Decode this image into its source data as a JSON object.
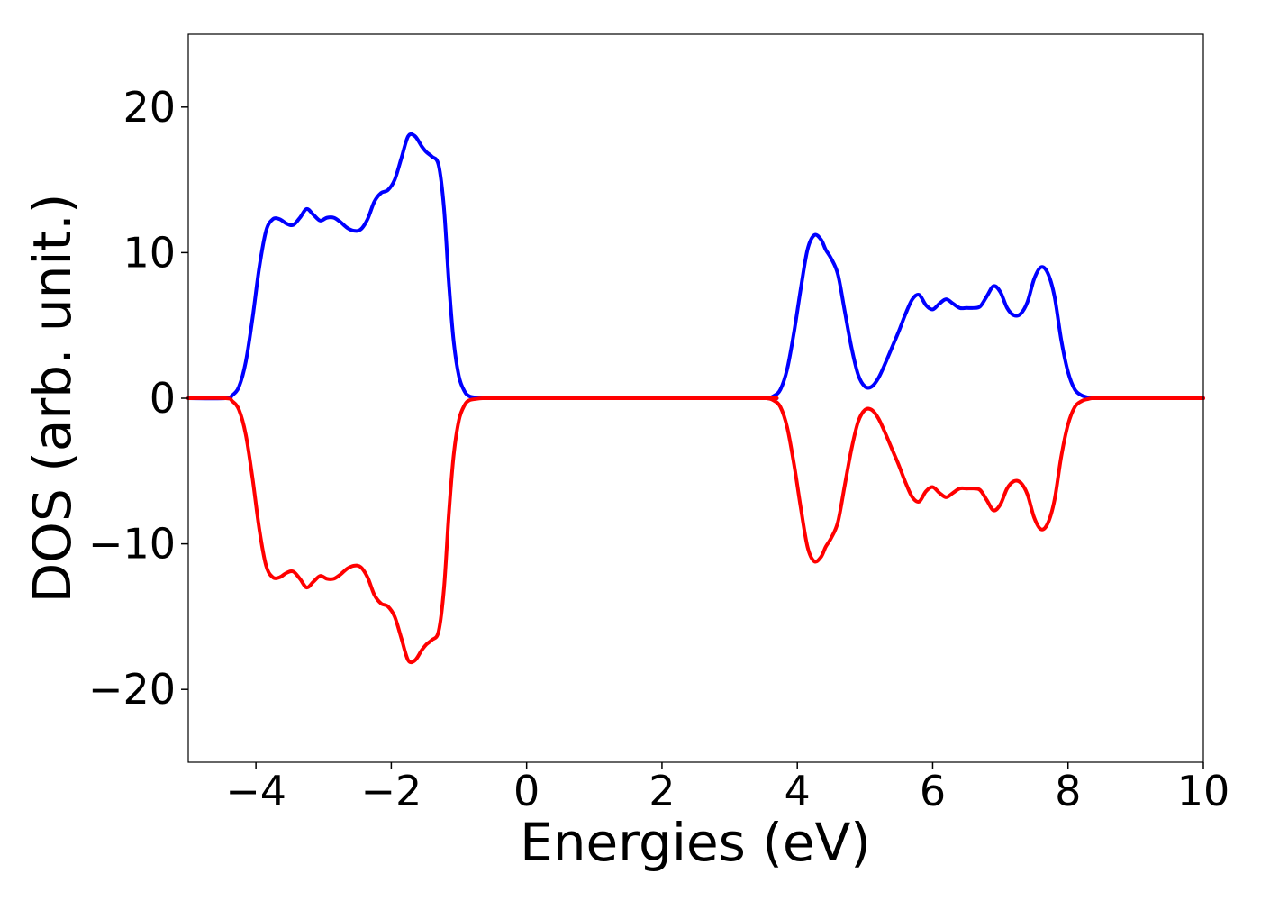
{
  "chart_data": {
    "type": "line",
    "title": "",
    "xlabel": "Energies (eV)",
    "ylabel": "DOS (arb. unit.)",
    "xlim": [
      -5,
      10
    ],
    "ylim": [
      -25,
      25
    ],
    "xticks": [
      -4,
      -2,
      0,
      2,
      4,
      6,
      8,
      10
    ],
    "xtick_labels": [
      "−4",
      "−2",
      "0",
      "2",
      "4",
      "6",
      "8",
      "10"
    ],
    "yticks": [
      -20,
      -10,
      0,
      10,
      20
    ],
    "ytick_labels": [
      "−20",
      "−10",
      "0",
      "10",
      "20"
    ],
    "grid": false,
    "legend": "none",
    "series": [
      {
        "color": "#0000ff",
        "x": [
          -5.0,
          -4.45,
          -4.35,
          -4.25,
          -4.15,
          -4.05,
          -3.95,
          -3.85,
          -3.75,
          -3.65,
          -3.55,
          -3.45,
          -3.35,
          -3.25,
          -3.15,
          -3.05,
          -2.95,
          -2.85,
          -2.75,
          -2.65,
          -2.55,
          -2.45,
          -2.35,
          -2.25,
          -2.15,
          -2.05,
          -1.95,
          -1.85,
          -1.75,
          -1.65,
          -1.55,
          -1.48,
          -1.4,
          -1.3,
          -1.22,
          -1.15,
          -1.08,
          -1.0,
          -0.92,
          -0.85,
          -0.75,
          -0.65,
          -0.55,
          -0.45,
          0.0,
          3.4,
          3.55,
          3.65,
          3.75,
          3.85,
          3.95,
          4.05,
          4.15,
          4.25,
          4.35,
          4.42,
          4.5,
          4.6,
          4.7,
          4.8,
          4.9,
          5.0,
          5.1,
          5.2,
          5.3,
          5.4,
          5.5,
          5.6,
          5.7,
          5.8,
          5.9,
          6.0,
          6.1,
          6.2,
          6.3,
          6.4,
          6.5,
          6.6,
          6.7,
          6.8,
          6.9,
          7.0,
          7.1,
          7.2,
          7.3,
          7.4,
          7.5,
          7.6,
          7.7,
          7.8,
          7.9,
          8.0,
          8.1,
          8.2,
          8.3,
          8.35,
          8.42,
          8.5,
          8.6,
          8.7,
          8.8,
          8.9,
          9.0,
          9.2,
          10.0
        ],
        "y": [
          0,
          0,
          0.2,
          0.8,
          2.5,
          5.5,
          9.0,
          11.5,
          12.3,
          12.3,
          12.0,
          11.9,
          12.4,
          13.0,
          12.6,
          12.2,
          12.4,
          12.4,
          12.1,
          11.7,
          11.5,
          11.6,
          12.3,
          13.5,
          14.1,
          14.3,
          15.0,
          16.5,
          18.0,
          18.0,
          17.3,
          16.9,
          16.6,
          16.0,
          13.0,
          8.0,
          4.0,
          1.5,
          0.5,
          0.15,
          0.05,
          0,
          0,
          0,
          0,
          0,
          0,
          0.15,
          0.6,
          2.0,
          4.5,
          7.5,
          10.2,
          11.2,
          10.9,
          10.2,
          9.6,
          8.5,
          6.0,
          3.5,
          1.6,
          0.8,
          0.8,
          1.4,
          2.4,
          3.5,
          4.6,
          5.8,
          6.8,
          7.1,
          6.4,
          6.1,
          6.5,
          6.8,
          6.5,
          6.2,
          6.2,
          6.2,
          6.3,
          7.0,
          7.7,
          7.3,
          6.2,
          5.7,
          5.8,
          6.6,
          8.2,
          9.0,
          8.6,
          7.0,
          4.0,
          1.8,
          0.6,
          0.2,
          0.05,
          0,
          0,
          0,
          0,
          0,
          0,
          0,
          0,
          0,
          0
        ]
      },
      {
        "color": "#ff0000",
        "x": [
          -5.0,
          -4.45,
          -4.35,
          -4.25,
          -4.15,
          -4.05,
          -3.95,
          -3.85,
          -3.75,
          -3.65,
          -3.55,
          -3.45,
          -3.35,
          -3.25,
          -3.15,
          -3.05,
          -2.95,
          -2.85,
          -2.75,
          -2.65,
          -2.55,
          -2.45,
          -2.35,
          -2.25,
          -2.15,
          -2.05,
          -1.95,
          -1.85,
          -1.75,
          -1.65,
          -1.55,
          -1.48,
          -1.4,
          -1.3,
          -1.22,
          -1.15,
          -1.08,
          -1.0,
          -0.92,
          -0.85,
          -0.75,
          -0.65,
          -0.55,
          -0.45,
          0.0,
          3.4,
          3.55,
          3.65,
          3.75,
          3.85,
          3.95,
          4.05,
          4.15,
          4.25,
          4.35,
          4.42,
          4.5,
          4.6,
          4.7,
          4.8,
          4.9,
          5.0,
          5.1,
          5.2,
          5.3,
          5.4,
          5.5,
          5.6,
          5.7,
          5.8,
          5.9,
          6.0,
          6.1,
          6.2,
          6.3,
          6.4,
          6.5,
          6.6,
          6.7,
          6.8,
          6.9,
          7.0,
          7.1,
          7.2,
          7.3,
          7.4,
          7.5,
          7.6,
          7.7,
          7.8,
          7.9,
          8.0,
          8.1,
          8.2,
          8.3,
          8.35,
          8.42,
          8.5,
          8.6,
          8.7,
          8.8,
          8.9,
          9.0,
          9.2,
          10.0
        ],
        "y": [
          0,
          0,
          -0.2,
          -0.8,
          -2.5,
          -5.5,
          -9.0,
          -11.5,
          -12.3,
          -12.3,
          -12.0,
          -11.9,
          -12.4,
          -13.0,
          -12.6,
          -12.2,
          -12.4,
          -12.4,
          -12.1,
          -11.7,
          -11.5,
          -11.6,
          -12.3,
          -13.5,
          -14.1,
          -14.3,
          -15.0,
          -16.5,
          -18.0,
          -18.0,
          -17.3,
          -16.9,
          -16.6,
          -16.0,
          -13.0,
          -8.0,
          -4.0,
          -1.5,
          -0.5,
          -0.15,
          -0.05,
          0,
          0,
          0,
          0,
          0,
          0,
          -0.15,
          -0.6,
          -2.0,
          -4.5,
          -7.5,
          -10.2,
          -11.2,
          -10.9,
          -10.2,
          -9.6,
          -8.5,
          -6.0,
          -3.5,
          -1.6,
          -0.8,
          -0.8,
          -1.4,
          -2.4,
          -3.5,
          -4.6,
          -5.8,
          -6.8,
          -7.1,
          -6.4,
          -6.1,
          -6.5,
          -6.8,
          -6.5,
          -6.2,
          -6.2,
          -6.2,
          -6.3,
          -7.0,
          -7.7,
          -7.3,
          -6.2,
          -5.7,
          -5.8,
          -6.6,
          -8.2,
          -9.0,
          -8.6,
          -7.0,
          -4.0,
          -1.8,
          -0.6,
          -0.2,
          -0.05,
          0,
          0,
          0,
          0,
          0,
          0,
          0,
          0,
          0,
          0
        ]
      }
    ]
  }
}
